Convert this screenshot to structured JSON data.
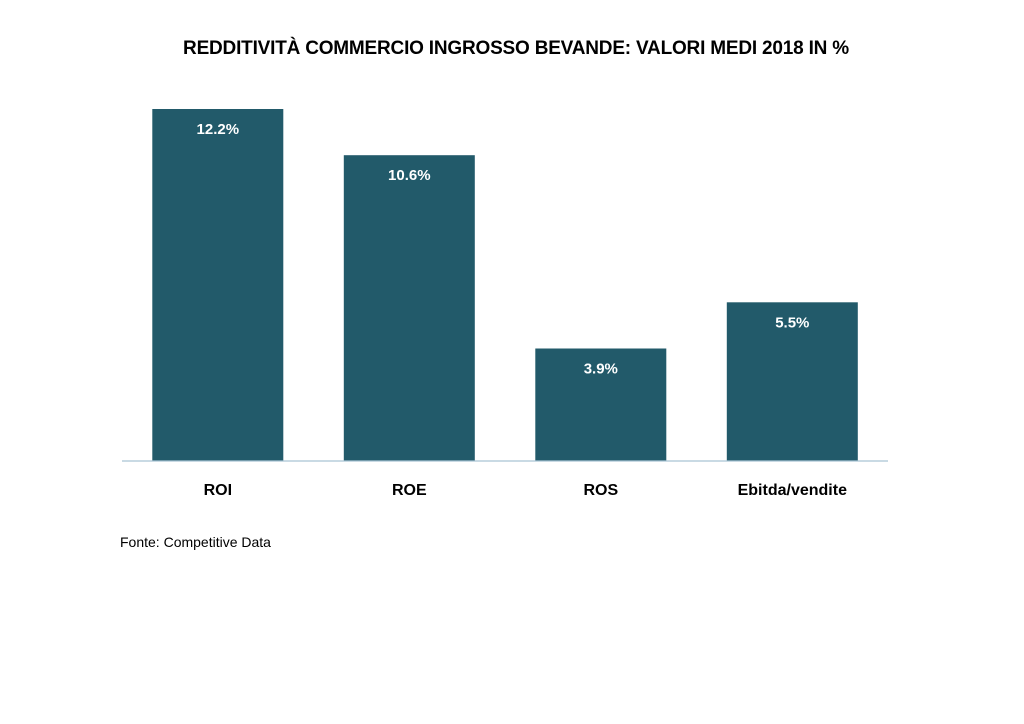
{
  "chart_data": {
    "type": "bar",
    "title": "REDDITIVITÀ COMMERCIO INGROSSO BEVANDE: VALORI MEDI 2018 IN %",
    "categories": [
      "ROI",
      "ROE",
      "ROS",
      "Ebitda/vendite"
    ],
    "values": [
      12.2,
      10.6,
      3.9,
      5.5
    ],
    "data_labels": [
      "12.2%",
      "10.6%",
      "3.9%",
      "5.5%"
    ],
    "xlabel": "",
    "ylabel": "",
    "ylim": [
      0,
      12.2
    ],
    "grid": false,
    "legend": "none",
    "bar_color": "#225a6a",
    "axis_color": "#a9c4d4"
  },
  "source_note": "Fonte: Competitive Data"
}
